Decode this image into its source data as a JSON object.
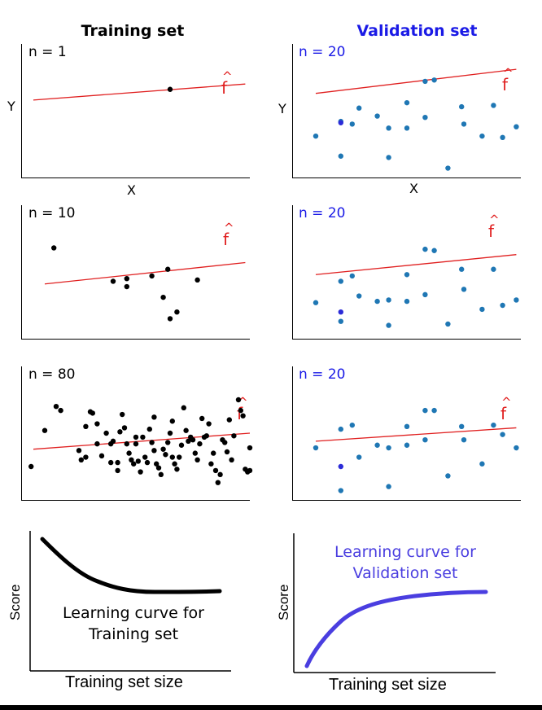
{
  "titles": {
    "training": "Training set",
    "validation": "Validation set"
  },
  "colors": {
    "training_title": "#000000",
    "validation_title": "#1a1ae6",
    "fit_line": "#e02020",
    "train_points": "#000000",
    "val_points": "#1f77b4",
    "val_highlight": "#2b2bd8",
    "val_curve": "#4a3ee0",
    "train_curve": "#000000"
  },
  "axis": {
    "x": "X",
    "y": "Y"
  },
  "fhat_label": "f",
  "panels": [
    {
      "id": "train-1",
      "n_label": "n = 1",
      "line": [
        [
          0.05,
          0.42
        ],
        [
          0.98,
          0.3
        ]
      ],
      "points": [
        [
          0.65,
          0.34
        ]
      ]
    },
    {
      "id": "val-1",
      "n_label": "n = 20",
      "line": [
        [
          0.1,
          0.37
        ],
        [
          0.98,
          0.19
        ]
      ],
      "points": [
        [
          0.1,
          0.69
        ],
        [
          0.21,
          0.84
        ],
        [
          0.21,
          0.58
        ],
        [
          0.26,
          0.6
        ],
        [
          0.29,
          0.48
        ],
        [
          0.37,
          0.54
        ],
        [
          0.42,
          0.63
        ],
        [
          0.5,
          0.63
        ],
        [
          0.5,
          0.44
        ],
        [
          0.42,
          0.85
        ],
        [
          0.58,
          0.55
        ],
        [
          0.58,
          0.28
        ],
        [
          0.62,
          0.27
        ],
        [
          0.68,
          0.93
        ],
        [
          0.74,
          0.47
        ],
        [
          0.75,
          0.6
        ],
        [
          0.83,
          0.69
        ],
        [
          0.88,
          0.46
        ],
        [
          0.92,
          0.7
        ],
        [
          0.98,
          0.62
        ]
      ],
      "highlight": [
        0.21,
        0.59
      ]
    },
    {
      "id": "train-10",
      "n_label": "n = 10",
      "line": [
        [
          0.1,
          0.59
        ],
        [
          0.98,
          0.43
        ]
      ],
      "points": [
        [
          0.14,
          0.32
        ],
        [
          0.4,
          0.57
        ],
        [
          0.46,
          0.55
        ],
        [
          0.46,
          0.61
        ],
        [
          0.57,
          0.53
        ],
        [
          0.62,
          0.69
        ],
        [
          0.64,
          0.48
        ],
        [
          0.65,
          0.85
        ],
        [
          0.68,
          0.8
        ],
        [
          0.77,
          0.56
        ]
      ]
    },
    {
      "id": "val-10",
      "n_label": "n = 20",
      "line": [
        [
          0.1,
          0.52
        ],
        [
          0.98,
          0.37
        ]
      ],
      "points": [
        [
          0.1,
          0.73
        ],
        [
          0.21,
          0.87
        ],
        [
          0.21,
          0.57
        ],
        [
          0.26,
          0.53
        ],
        [
          0.29,
          0.68
        ],
        [
          0.37,
          0.72
        ],
        [
          0.42,
          0.71
        ],
        [
          0.5,
          0.72
        ],
        [
          0.5,
          0.52
        ],
        [
          0.42,
          0.9
        ],
        [
          0.58,
          0.67
        ],
        [
          0.58,
          0.33
        ],
        [
          0.62,
          0.34
        ],
        [
          0.68,
          0.89
        ],
        [
          0.74,
          0.48
        ],
        [
          0.75,
          0.63
        ],
        [
          0.83,
          0.78
        ],
        [
          0.88,
          0.48
        ],
        [
          0.92,
          0.75
        ],
        [
          0.98,
          0.71
        ]
      ],
      "highlight": [
        0.21,
        0.8
      ]
    },
    {
      "id": "train-80",
      "n_label": "n = 80",
      "line": [
        [
          0.05,
          0.62
        ],
        [
          1.0,
          0.5
        ]
      ],
      "points": [
        [
          0.04,
          0.75
        ],
        [
          0.1,
          0.48
        ],
        [
          0.15,
          0.3
        ],
        [
          0.17,
          0.33
        ],
        [
          0.25,
          0.63
        ],
        [
          0.26,
          0.7
        ],
        [
          0.28,
          0.68
        ],
        [
          0.28,
          0.45
        ],
        [
          0.3,
          0.34
        ],
        [
          0.31,
          0.35
        ],
        [
          0.33,
          0.58
        ],
        [
          0.33,
          0.43
        ],
        [
          0.35,
          0.67
        ],
        [
          0.37,
          0.5
        ],
        [
          0.39,
          0.72
        ],
        [
          0.39,
          0.58
        ],
        [
          0.4,
          0.56
        ],
        [
          0.42,
          0.72
        ],
        [
          0.42,
          0.78
        ],
        [
          0.43,
          0.49
        ],
        [
          0.44,
          0.36
        ],
        [
          0.45,
          0.46
        ],
        [
          0.46,
          0.58
        ],
        [
          0.47,
          0.65
        ],
        [
          0.48,
          0.7
        ],
        [
          0.49,
          0.73
        ],
        [
          0.5,
          0.58
        ],
        [
          0.5,
          0.53
        ],
        [
          0.51,
          0.71
        ],
        [
          0.52,
          0.79
        ],
        [
          0.53,
          0.53
        ],
        [
          0.54,
          0.68
        ],
        [
          0.55,
          0.72
        ],
        [
          0.56,
          0.47
        ],
        [
          0.57,
          0.57
        ],
        [
          0.58,
          0.38
        ],
        [
          0.58,
          0.63
        ],
        [
          0.59,
          0.73
        ],
        [
          0.6,
          0.76
        ],
        [
          0.61,
          0.81
        ],
        [
          0.62,
          0.62
        ],
        [
          0.63,
          0.66
        ],
        [
          0.64,
          0.57
        ],
        [
          0.65,
          0.5
        ],
        [
          0.66,
          0.41
        ],
        [
          0.66,
          0.68
        ],
        [
          0.67,
          0.73
        ],
        [
          0.68,
          0.77
        ],
        [
          0.69,
          0.68
        ],
        [
          0.7,
          0.59
        ],
        [
          0.71,
          0.31
        ],
        [
          0.72,
          0.48
        ],
        [
          0.73,
          0.56
        ],
        [
          0.74,
          0.53
        ],
        [
          0.75,
          0.55
        ],
        [
          0.76,
          0.65
        ],
        [
          0.77,
          0.7
        ],
        [
          0.78,
          0.58
        ],
        [
          0.79,
          0.39
        ],
        [
          0.8,
          0.53
        ],
        [
          0.81,
          0.52
        ],
        [
          0.82,
          0.43
        ],
        [
          0.83,
          0.73
        ],
        [
          0.84,
          0.65
        ],
        [
          0.85,
          0.78
        ],
        [
          0.86,
          0.87
        ],
        [
          0.87,
          0.81
        ],
        [
          0.88,
          0.55
        ],
        [
          0.89,
          0.57
        ],
        [
          0.9,
          0.64
        ],
        [
          0.91,
          0.4
        ],
        [
          0.92,
          0.7
        ],
        [
          0.93,
          0.52
        ],
        [
          0.95,
          0.25
        ],
        [
          0.96,
          0.33
        ],
        [
          0.97,
          0.37
        ],
        [
          0.98,
          0.77
        ],
        [
          0.99,
          0.79
        ],
        [
          1.0,
          0.78
        ],
        [
          1.0,
          0.61
        ]
      ]
    },
    {
      "id": "val-80",
      "n_label": "n = 20",
      "line": [
        [
          0.1,
          0.56
        ],
        [
          0.98,
          0.46
        ]
      ],
      "points": [
        [
          0.1,
          0.61
        ],
        [
          0.21,
          0.93
        ],
        [
          0.21,
          0.47
        ],
        [
          0.26,
          0.44
        ],
        [
          0.29,
          0.68
        ],
        [
          0.37,
          0.59
        ],
        [
          0.42,
          0.61
        ],
        [
          0.5,
          0.59
        ],
        [
          0.5,
          0.45
        ],
        [
          0.42,
          0.9
        ],
        [
          0.58,
          0.55
        ],
        [
          0.58,
          0.33
        ],
        [
          0.62,
          0.33
        ],
        [
          0.68,
          0.82
        ],
        [
          0.74,
          0.45
        ],
        [
          0.75,
          0.55
        ],
        [
          0.83,
          0.73
        ],
        [
          0.88,
          0.44
        ],
        [
          0.92,
          0.51
        ],
        [
          0.98,
          0.61
        ]
      ],
      "highlight": [
        0.21,
        0.75
      ]
    }
  ],
  "learning_curves": {
    "training": {
      "title_line1": "Learning curve for",
      "title_line2": "Training set",
      "xlabel": "Training set size",
      "ylabel": "Score"
    },
    "validation": {
      "title_line1": "Learning curve for",
      "title_line2": "Validation set",
      "xlabel": "Training set size",
      "ylabel": "Score"
    }
  }
}
